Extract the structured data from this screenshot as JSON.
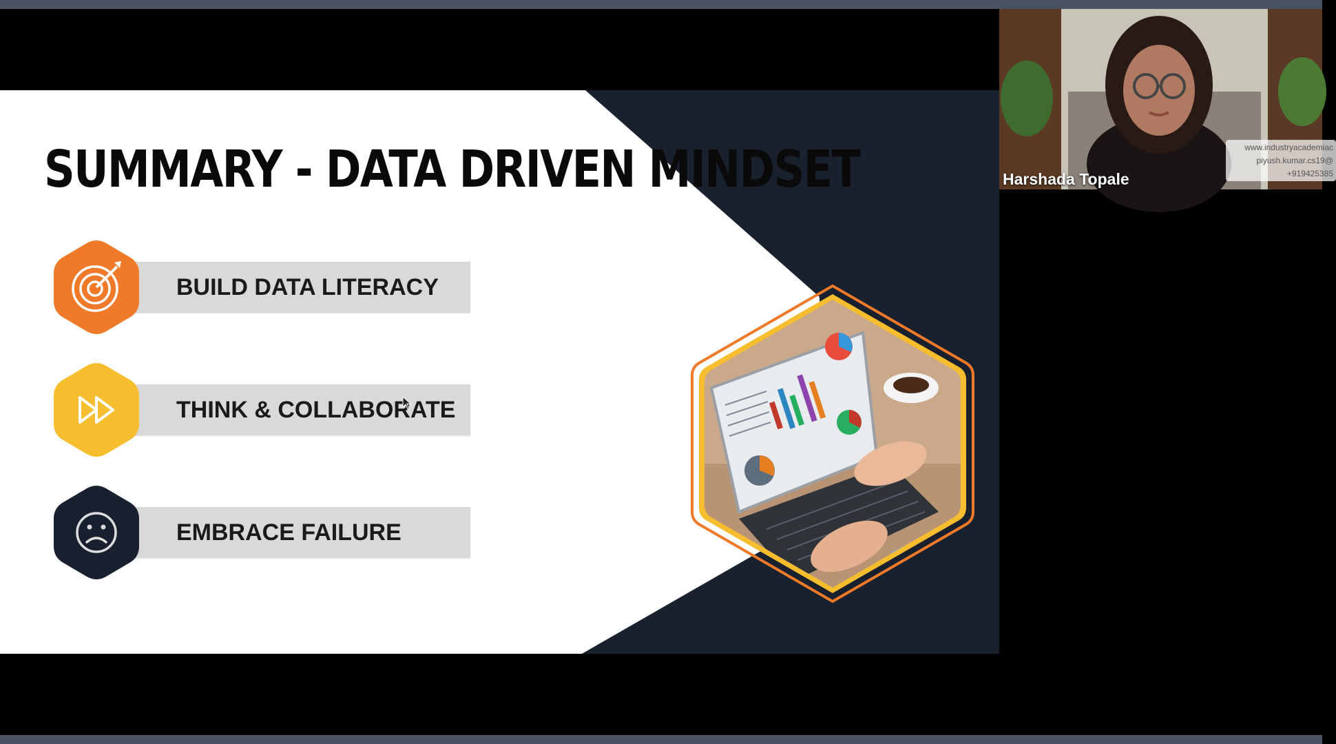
{
  "slide": {
    "title": "SUMMARY - DATA DRIVEN MINDSET",
    "items": [
      {
        "label": "BUILD DATA LITERACY",
        "icon": "target-icon",
        "color": "#ef7a2a"
      },
      {
        "label": "THINK & COLLABORATE",
        "icon": "fast-forward-icon",
        "color": "#f6bd2e"
      },
      {
        "label": "EMBRACE FAILURE",
        "icon": "sad-face-icon",
        "color": "#18202f"
      }
    ]
  },
  "webcam": {
    "participant_name": "Harshada Topale",
    "watermark_lines": [
      "www.industryacademiac",
      "piyush.kumar.cs19@",
      "+919425385"
    ]
  },
  "colors": {
    "navy": "#19202e",
    "orange": "#ef7a2a",
    "yellow": "#f6bd2e",
    "bar": "#d9d9d9"
  }
}
